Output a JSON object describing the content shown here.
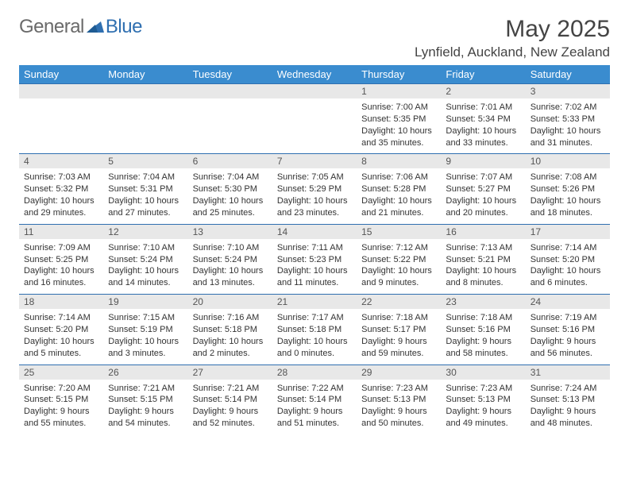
{
  "logo": {
    "general": "General",
    "blue": "Blue"
  },
  "title": "May 2025",
  "location": "Lynfield, Auckland, New Zealand",
  "colors": {
    "header_bg": "#3a8ccf",
    "header_text": "#ffffff",
    "daynum_bg": "#e8e8e8",
    "border": "#2f6fb0",
    "text": "#333333",
    "title_text": "#444444"
  },
  "dayNames": [
    "Sunday",
    "Monday",
    "Tuesday",
    "Wednesday",
    "Thursday",
    "Friday",
    "Saturday"
  ],
  "weeks": [
    [
      null,
      null,
      null,
      null,
      {
        "n": "1",
        "sr": "7:00 AM",
        "ss": "5:35 PM",
        "dl": "10 hours and 35 minutes."
      },
      {
        "n": "2",
        "sr": "7:01 AM",
        "ss": "5:34 PM",
        "dl": "10 hours and 33 minutes."
      },
      {
        "n": "3",
        "sr": "7:02 AM",
        "ss": "5:33 PM",
        "dl": "10 hours and 31 minutes."
      }
    ],
    [
      {
        "n": "4",
        "sr": "7:03 AM",
        "ss": "5:32 PM",
        "dl": "10 hours and 29 minutes."
      },
      {
        "n": "5",
        "sr": "7:04 AM",
        "ss": "5:31 PM",
        "dl": "10 hours and 27 minutes."
      },
      {
        "n": "6",
        "sr": "7:04 AM",
        "ss": "5:30 PM",
        "dl": "10 hours and 25 minutes."
      },
      {
        "n": "7",
        "sr": "7:05 AM",
        "ss": "5:29 PM",
        "dl": "10 hours and 23 minutes."
      },
      {
        "n": "8",
        "sr": "7:06 AM",
        "ss": "5:28 PM",
        "dl": "10 hours and 21 minutes."
      },
      {
        "n": "9",
        "sr": "7:07 AM",
        "ss": "5:27 PM",
        "dl": "10 hours and 20 minutes."
      },
      {
        "n": "10",
        "sr": "7:08 AM",
        "ss": "5:26 PM",
        "dl": "10 hours and 18 minutes."
      }
    ],
    [
      {
        "n": "11",
        "sr": "7:09 AM",
        "ss": "5:25 PM",
        "dl": "10 hours and 16 minutes."
      },
      {
        "n": "12",
        "sr": "7:10 AM",
        "ss": "5:24 PM",
        "dl": "10 hours and 14 minutes."
      },
      {
        "n": "13",
        "sr": "7:10 AM",
        "ss": "5:24 PM",
        "dl": "10 hours and 13 minutes."
      },
      {
        "n": "14",
        "sr": "7:11 AM",
        "ss": "5:23 PM",
        "dl": "10 hours and 11 minutes."
      },
      {
        "n": "15",
        "sr": "7:12 AM",
        "ss": "5:22 PM",
        "dl": "10 hours and 9 minutes."
      },
      {
        "n": "16",
        "sr": "7:13 AM",
        "ss": "5:21 PM",
        "dl": "10 hours and 8 minutes."
      },
      {
        "n": "17",
        "sr": "7:14 AM",
        "ss": "5:20 PM",
        "dl": "10 hours and 6 minutes."
      }
    ],
    [
      {
        "n": "18",
        "sr": "7:14 AM",
        "ss": "5:20 PM",
        "dl": "10 hours and 5 minutes."
      },
      {
        "n": "19",
        "sr": "7:15 AM",
        "ss": "5:19 PM",
        "dl": "10 hours and 3 minutes."
      },
      {
        "n": "20",
        "sr": "7:16 AM",
        "ss": "5:18 PM",
        "dl": "10 hours and 2 minutes."
      },
      {
        "n": "21",
        "sr": "7:17 AM",
        "ss": "5:18 PM",
        "dl": "10 hours and 0 minutes."
      },
      {
        "n": "22",
        "sr": "7:18 AM",
        "ss": "5:17 PM",
        "dl": "9 hours and 59 minutes."
      },
      {
        "n": "23",
        "sr": "7:18 AM",
        "ss": "5:16 PM",
        "dl": "9 hours and 58 minutes."
      },
      {
        "n": "24",
        "sr": "7:19 AM",
        "ss": "5:16 PM",
        "dl": "9 hours and 56 minutes."
      }
    ],
    [
      {
        "n": "25",
        "sr": "7:20 AM",
        "ss": "5:15 PM",
        "dl": "9 hours and 55 minutes."
      },
      {
        "n": "26",
        "sr": "7:21 AM",
        "ss": "5:15 PM",
        "dl": "9 hours and 54 minutes."
      },
      {
        "n": "27",
        "sr": "7:21 AM",
        "ss": "5:14 PM",
        "dl": "9 hours and 52 minutes."
      },
      {
        "n": "28",
        "sr": "7:22 AM",
        "ss": "5:14 PM",
        "dl": "9 hours and 51 minutes."
      },
      {
        "n": "29",
        "sr": "7:23 AM",
        "ss": "5:13 PM",
        "dl": "9 hours and 50 minutes."
      },
      {
        "n": "30",
        "sr": "7:23 AM",
        "ss": "5:13 PM",
        "dl": "9 hours and 49 minutes."
      },
      {
        "n": "31",
        "sr": "7:24 AM",
        "ss": "5:13 PM",
        "dl": "9 hours and 48 minutes."
      }
    ]
  ],
  "labels": {
    "sunrise": "Sunrise: ",
    "sunset": "Sunset: ",
    "daylight": "Daylight: "
  }
}
